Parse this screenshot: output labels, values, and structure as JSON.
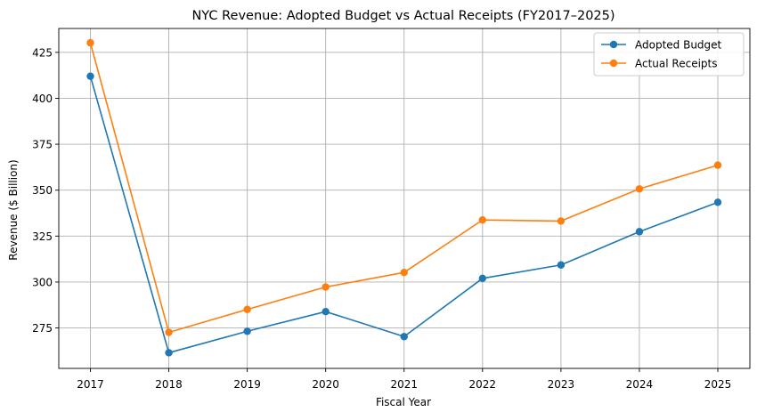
{
  "chart_data": {
    "type": "line",
    "title": "NYC Revenue: Adopted Budget vs Actual Receipts (FY2017–2025)",
    "xlabel": "Fiscal Year",
    "ylabel": "Revenue ($ Billion)",
    "categories": [
      "2017",
      "2018",
      "2019",
      "2020",
      "2021",
      "2022",
      "2023",
      "2024",
      "2025"
    ],
    "yticks": [
      275,
      300,
      325,
      350,
      375,
      400,
      425
    ],
    "ylim": [
      253,
      438
    ],
    "grid": true,
    "legend_position": "top-right",
    "series": [
      {
        "name": "Adopted Budget",
        "color": "#1f77b4",
        "marker": "circle",
        "values": [
          412.0,
          261.5,
          273.2,
          283.9,
          270.3,
          302.0,
          309.3,
          327.4,
          343.4
        ]
      },
      {
        "name": "Actual Receipts",
        "color": "#ff7f0e",
        "marker": "circle",
        "values": [
          430.2,
          272.6,
          285.1,
          297.3,
          305.2,
          333.8,
          333.2,
          350.7,
          363.6
        ]
      }
    ]
  }
}
